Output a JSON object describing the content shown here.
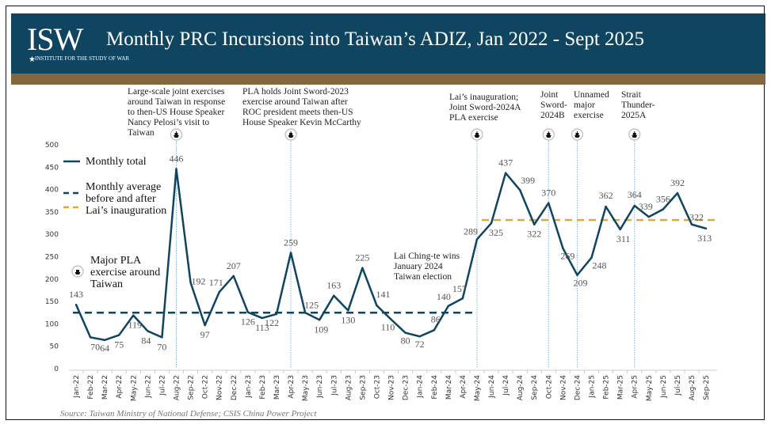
{
  "header": {
    "logo_text": "ISW",
    "logo_subtext": "INSTITUTE FOR THE STUDY OF WAR",
    "title": "Monthly PRC Incursions into Taiwan’s ADIZ, Jan 2022 - Sept 2025"
  },
  "source": "Source: Taiwan Ministry of National Defense; CSIS China Power Project",
  "colors": {
    "header": "#0f4560",
    "stripe": "#85673f",
    "line": "#0f4560",
    "avg_before": "#0f4560",
    "avg_after": "#e0a83a"
  },
  "legend": {
    "monthly_total": "Monthly total",
    "monthly_average": "Monthly average before and after Lai’s inauguration",
    "monthly_average_l1": "Monthly average",
    "monthly_average_l2": "before and after",
    "monthly_average_l3": "Lai’s inauguration",
    "exercise_marker": "Major PLA exercise around Taiwan",
    "exercise_l1": "Major PLA",
    "exercise_l2": "exercise around",
    "exercise_l3": "Taiwan"
  },
  "annotations": {
    "pelosi": [
      "Large-scale joint exercises",
      "around Taiwan in response",
      "to then-US House Speaker",
      "Nancy Pelosi’s  visit to",
      "Taiwan"
    ],
    "joint_sword_2023": [
      "PLA holds Joint Sword-2023",
      "exercise  around Taiwan after",
      "ROC president  meets then-US",
      "House Speaker  Kevin McCarthy"
    ],
    "lai_election": [
      "Lai Ching-te wins",
      "January 2024",
      "Taiwan election"
    ],
    "lai_inauguration": [
      "Lai’s inauguration;",
      "Joint Sword-2024A",
      "PLA exercise"
    ],
    "joint_sword_2024b": [
      "Joint",
      "Sword-",
      "2024B"
    ],
    "unnamed": [
      "Unnamed",
      "major",
      "exercise"
    ],
    "strait_thunder": [
      "Strait",
      "Thunder-",
      "2025A"
    ]
  },
  "chart_data": {
    "type": "line",
    "title": "Monthly PRC Incursions into Taiwan’s ADIZ, Jan 2022 - Sept 2025",
    "xlabel": "",
    "ylabel": "",
    "ylim": [
      0,
      500
    ],
    "yticks": [
      0,
      50,
      100,
      150,
      200,
      250,
      300,
      350,
      400,
      450,
      500
    ],
    "categories": [
      "Jan-22",
      "Feb-22",
      "Mar-22",
      "Apr-22",
      "May-22",
      "Jun-22",
      "Jul-22",
      "Aug-22",
      "Sep-22",
      "Oct-22",
      "Nov-22",
      "Dec-22",
      "Jan-23",
      "Feb-23",
      "Mar-23",
      "Apr-23",
      "May-23",
      "Jun-23",
      "Jul-23",
      "Aug-23",
      "Sep-23",
      "Oct-23",
      "Nov-23",
      "Dec-23",
      "Jan-24",
      "Feb-24",
      "Mar-24",
      "Apr-24",
      "May-24",
      "Jun-24",
      "Jul-24",
      "Aug-24",
      "Sep-24",
      "Oct-24",
      "Nov-24",
      "Dec-24",
      "Jan-25",
      "Feb-25",
      "Mar-25",
      "Apr-25",
      "May-25",
      "Jun-25",
      "Jul-25",
      "Aug-25",
      "Sep-25"
    ],
    "series": [
      {
        "name": "Monthly total",
        "values": [
          143,
          70,
          64,
          75,
          119,
          84,
          70,
          446,
          192,
          97,
          171,
          207,
          126,
          113,
          122,
          259,
          125,
          109,
          163,
          130,
          225,
          141,
          110,
          80,
          72,
          86,
          140,
          157,
          289,
          325,
          437,
          399,
          322,
          370,
          269,
          209,
          248,
          362,
          311,
          364,
          339,
          356,
          392,
          322,
          313
        ]
      }
    ],
    "averages": [
      {
        "name": "Monthly average before Lai’s inauguration",
        "value": 125,
        "from": "Jan-22",
        "to": "May-24"
      },
      {
        "name": "Monthly average after Lai’s inauguration",
        "value": 332,
        "from": "May-24",
        "to": "Sep-25"
      }
    ],
    "exercise_markers": [
      "Aug-22",
      "Apr-23",
      "May-24",
      "Oct-24",
      "Dec-24",
      "Apr-25"
    ],
    "legend_position": "top-left",
    "grid": false
  }
}
